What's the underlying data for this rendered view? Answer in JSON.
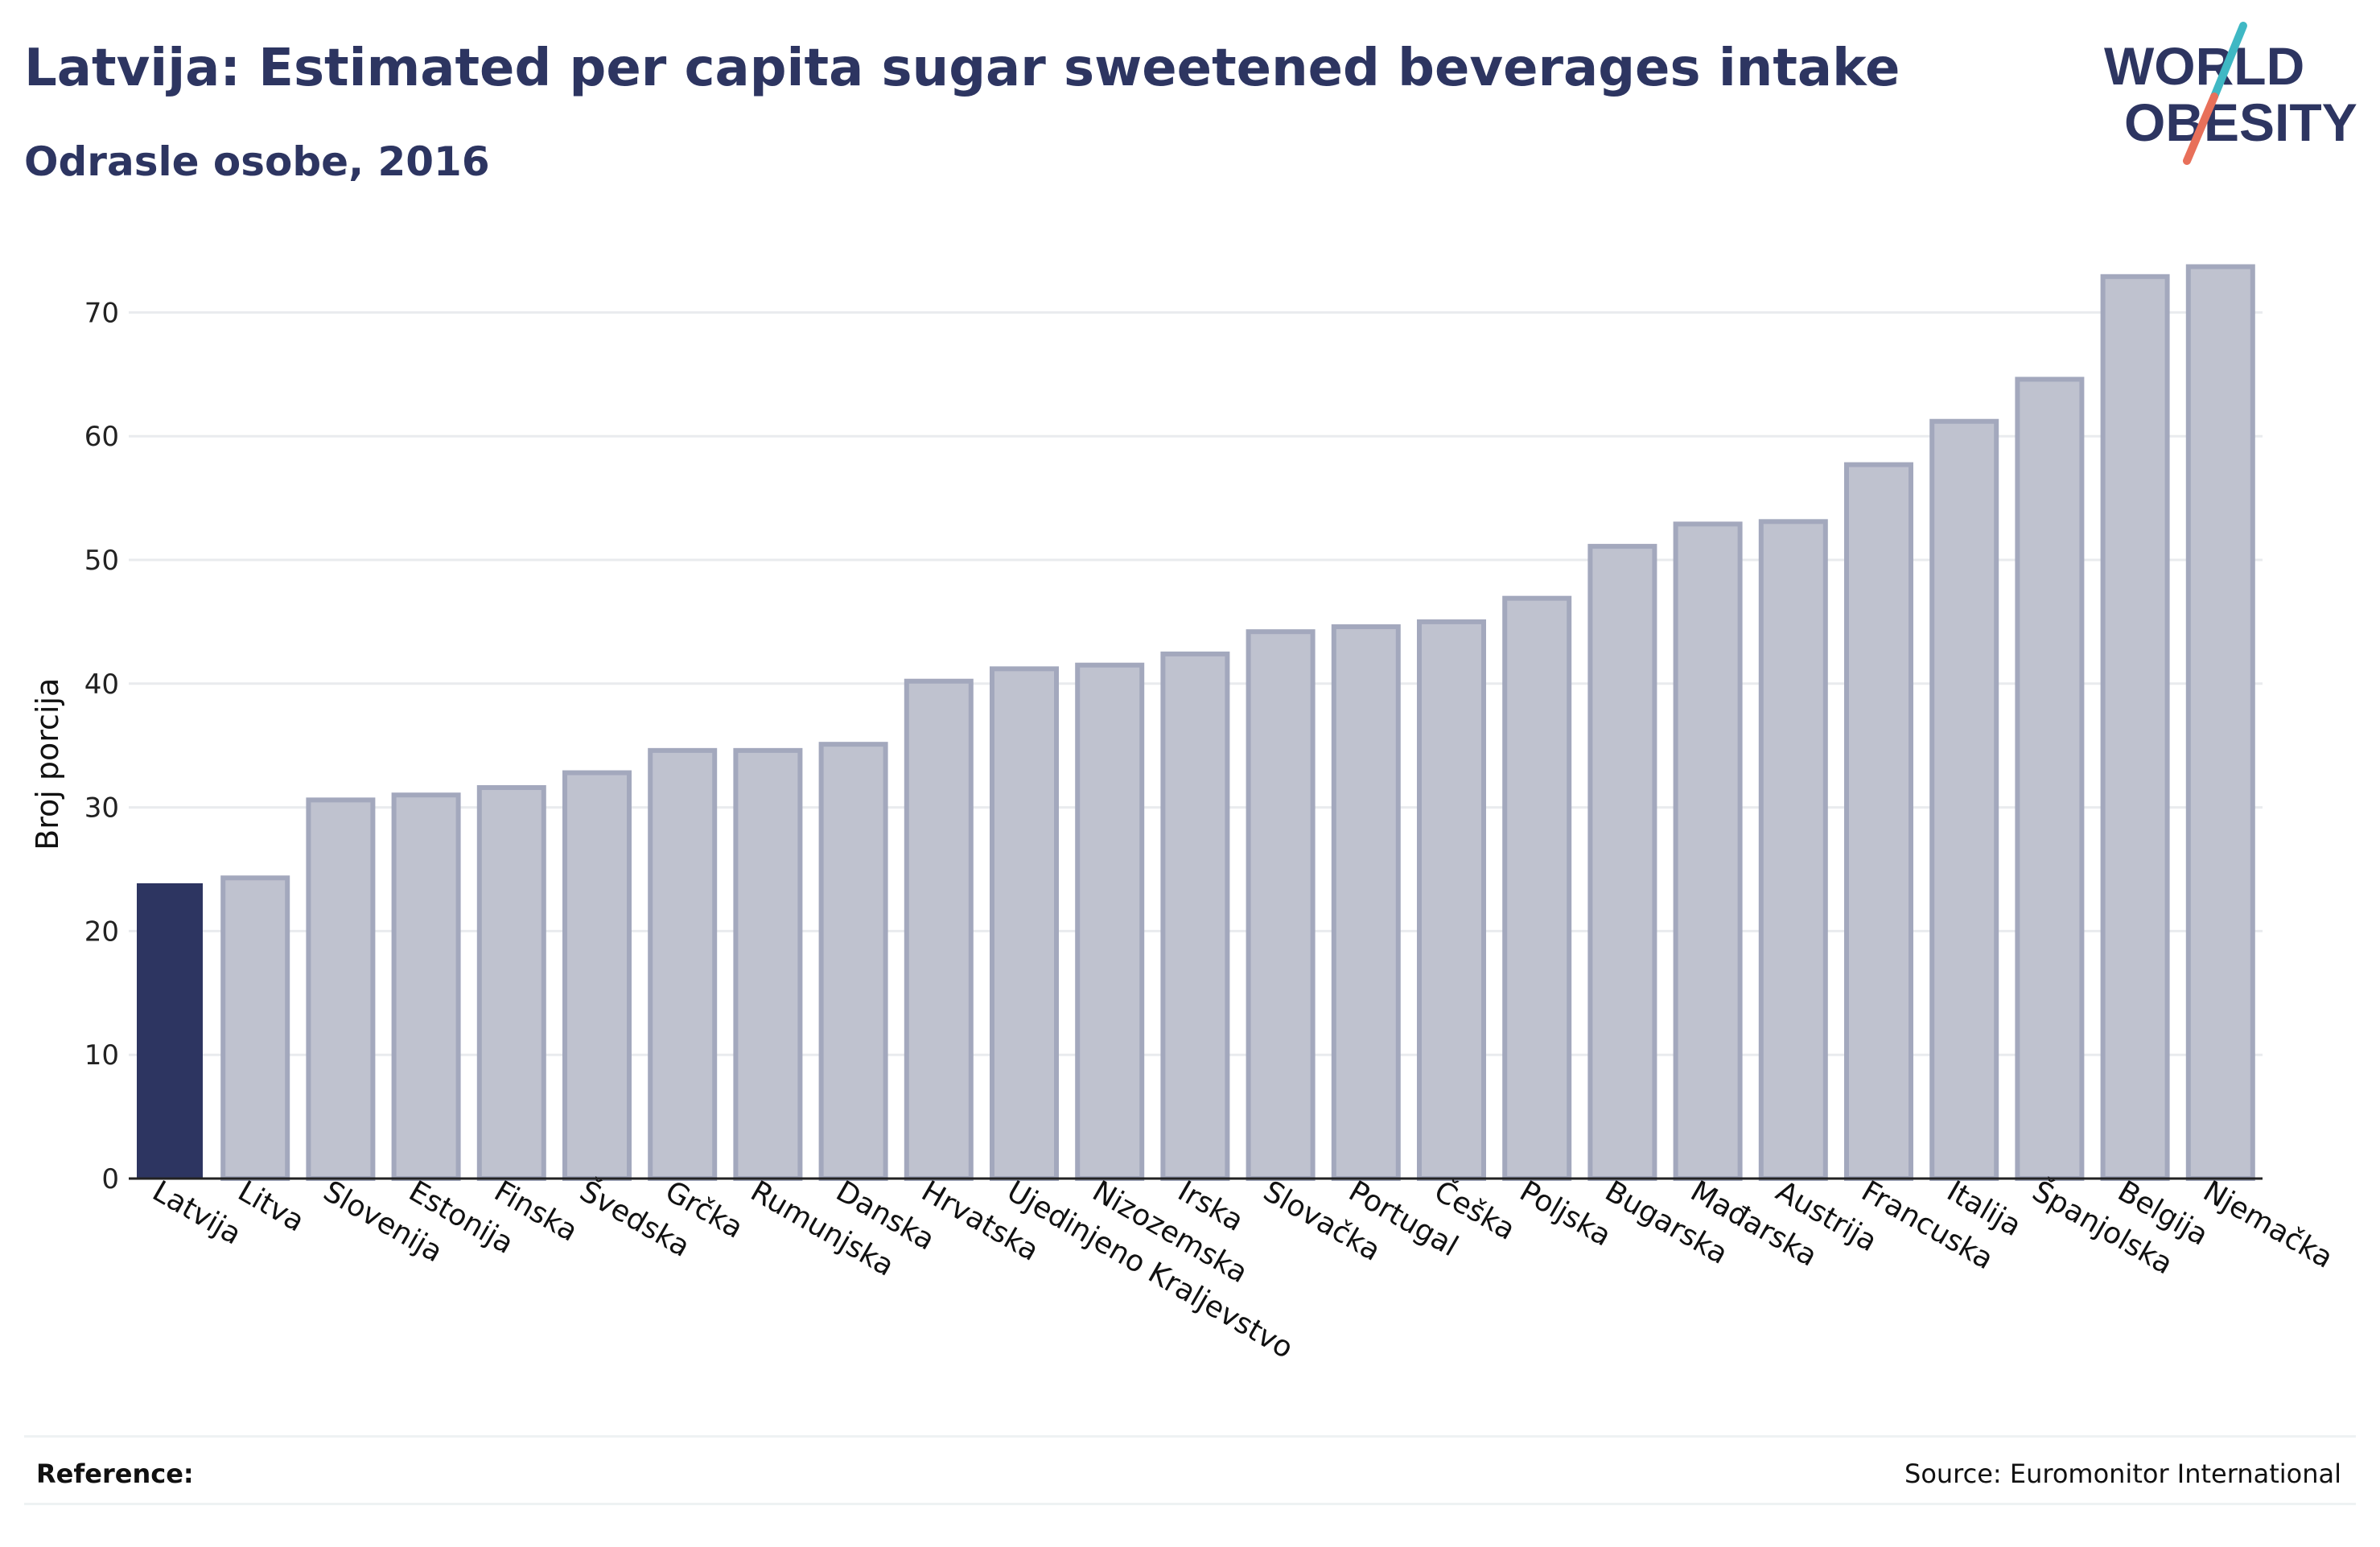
{
  "header": {
    "title": "Latvija: Estimated per capita sugar sweetened beverages intake",
    "subtitle": "Odrasle osobe, 2016"
  },
  "logo": {
    "line1": "WORLD",
    "line2": "OBESITY",
    "icon": "slash-logo-icon",
    "colors": {
      "text": "#2d3561",
      "slash_top": "#3fb8c4",
      "slash_bottom": "#e8705a"
    }
  },
  "chart_data": {
    "type": "bar",
    "title": "Latvija: Estimated per capita sugar sweetened beverages intake",
    "subtitle": "Odrasle osobe, 2016",
    "xlabel": "",
    "ylabel": "Broj porcija",
    "ylim": [
      0,
      75
    ],
    "yticks": [
      0,
      10,
      20,
      30,
      40,
      50,
      60,
      70
    ],
    "grid": true,
    "highlight": "Latvija",
    "categories": [
      "Latvija",
      "Litva",
      "Slovenija",
      "Estonija",
      "Finska",
      "Švedska",
      "Grčka",
      "Rumunjska",
      "Danska",
      "Hrvatska",
      "Ujedinjeno Kraljevstvo",
      "Nizozemska",
      "Irska",
      "Slovačka",
      "Portugal",
      "Češka",
      "Poljska",
      "Bugarska",
      "Mađarska",
      "Austrija",
      "Francuska",
      "Italija",
      "Španjolska",
      "Belgija",
      "Njemačka"
    ],
    "values": [
      23.8,
      24.3,
      30.6,
      31.0,
      31.6,
      32.8,
      34.6,
      34.6,
      35.1,
      40.2,
      41.2,
      41.5,
      42.4,
      44.2,
      44.6,
      45.0,
      46.9,
      51.1,
      52.9,
      53.1,
      57.7,
      61.2,
      64.6,
      72.9,
      73.7
    ],
    "colors": {
      "highlight": "#2d3561",
      "bar_fill": "#bfc2cf",
      "bar_stroke": "#a3a8bd",
      "grid": "#e9ebee",
      "axis": "#222222"
    }
  },
  "footer": {
    "reference_label": "Reference:",
    "source": "Source: Euromonitor International"
  }
}
